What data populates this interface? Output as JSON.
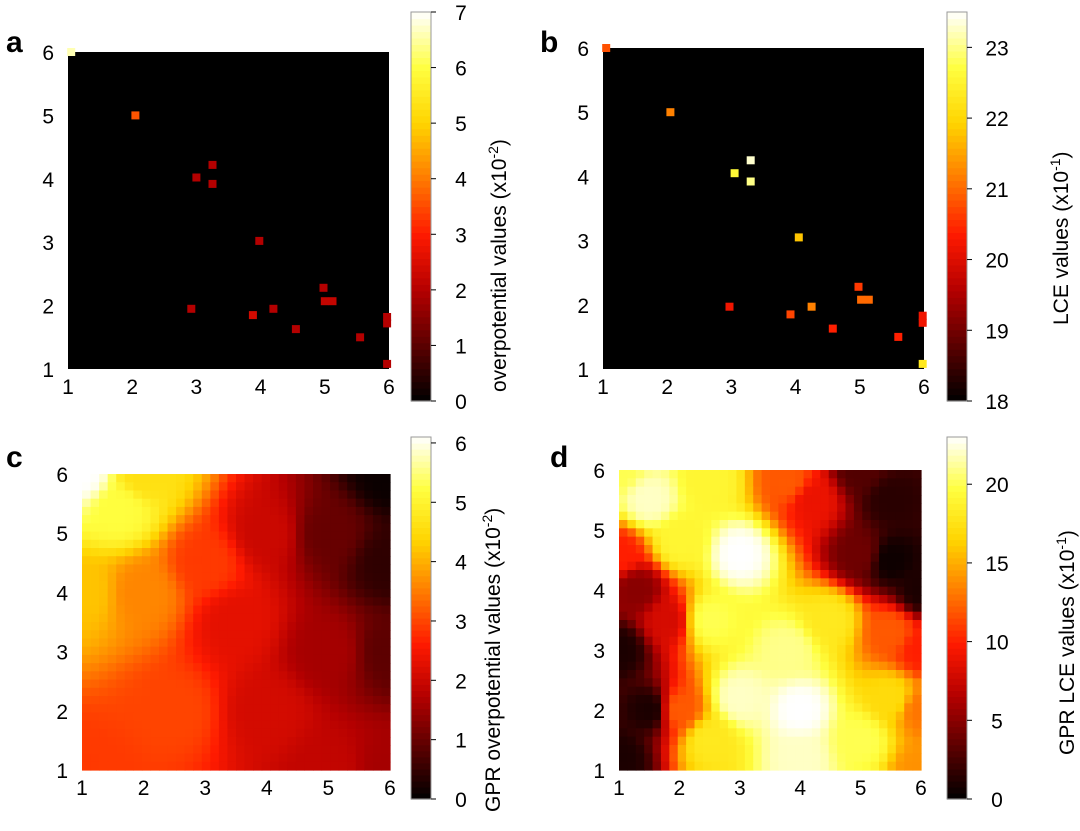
{
  "colormap": {
    "name": "hot",
    "stops": [
      "#000000",
      "#5a0000",
      "#b40000",
      "#ff1a00",
      "#ff7a00",
      "#ffd400",
      "#ffff40",
      "#ffffff"
    ]
  },
  "chart_data": [
    {
      "panel": "a",
      "type": "heatmap",
      "background_color": "#000000",
      "x_ticks": [
        "1",
        "2",
        "3",
        "4",
        "5",
        "6"
      ],
      "y_ticks": [
        "1",
        "2",
        "3",
        "4",
        "5",
        "6"
      ],
      "xlim": [
        1,
        6
      ],
      "ylim": [
        1,
        6
      ],
      "grid": false,
      "colorbar": {
        "label_main": "overpotential values (x10",
        "label_sup": "-2",
        "label_end": ")",
        "ticks": [
          "0",
          "1",
          "2",
          "3",
          "4",
          "5",
          "6",
          "7"
        ],
        "range": [
          0,
          7
        ]
      },
      "points": [
        {
          "x": 1.05,
          "y": 6.0,
          "value": 6.6
        },
        {
          "x": 2.05,
          "y": 5.0,
          "value": 3.6
        },
        {
          "x": 3.25,
          "y": 4.22,
          "value": 2.0
        },
        {
          "x": 3.0,
          "y": 4.02,
          "value": 2.0
        },
        {
          "x": 3.25,
          "y": 3.92,
          "value": 2.0
        },
        {
          "x": 3.98,
          "y": 3.02,
          "value": 2.0
        },
        {
          "x": 2.92,
          "y": 1.95,
          "value": 2.0
        },
        {
          "x": 4.2,
          "y": 1.95,
          "value": 2.0
        },
        {
          "x": 3.88,
          "y": 1.85,
          "value": 2.4
        },
        {
          "x": 4.98,
          "y": 2.28,
          "value": 2.0
        },
        {
          "x": 5.0,
          "y": 2.07,
          "value": 2.2
        },
        {
          "x": 5.12,
          "y": 2.07,
          "value": 2.2
        },
        {
          "x": 4.55,
          "y": 1.63,
          "value": 2.0
        },
        {
          "x": 5.55,
          "y": 1.5,
          "value": 2.0
        },
        {
          "x": 5.97,
          "y": 1.82,
          "value": 2.0
        },
        {
          "x": 5.97,
          "y": 1.72,
          "value": 2.0
        },
        {
          "x": 5.97,
          "y": 1.08,
          "value": 2.0
        }
      ]
    },
    {
      "panel": "b",
      "type": "heatmap",
      "background_color": "#000000",
      "x_ticks": [
        "1",
        "2",
        "3",
        "4",
        "5",
        "6"
      ],
      "y_ticks": [
        "1",
        "2",
        "3",
        "4",
        "5",
        "6"
      ],
      "xlim": [
        1,
        6
      ],
      "ylim": [
        1,
        6
      ],
      "grid": false,
      "colorbar": {
        "label_main": "LCE values (x10",
        "label_sup": "-1",
        "label_end": ")",
        "ticks": [
          "18",
          "19",
          "20",
          "21",
          "22",
          "23"
        ],
        "range": [
          18,
          23.5
        ]
      },
      "points": [
        {
          "x": 1.05,
          "y": 6.0,
          "value": 20.8
        },
        {
          "x": 2.05,
          "y": 5.0,
          "value": 21.2
        },
        {
          "x": 3.3,
          "y": 4.25,
          "value": 23.3
        },
        {
          "x": 3.05,
          "y": 4.05,
          "value": 22.6
        },
        {
          "x": 3.3,
          "y": 3.92,
          "value": 23.0
        },
        {
          "x": 4.05,
          "y": 3.05,
          "value": 21.8
        },
        {
          "x": 2.97,
          "y": 1.97,
          "value": 20.2
        },
        {
          "x": 4.25,
          "y": 1.97,
          "value": 21.2
        },
        {
          "x": 3.92,
          "y": 1.85,
          "value": 20.7
        },
        {
          "x": 4.98,
          "y": 2.28,
          "value": 20.6
        },
        {
          "x": 5.02,
          "y": 2.08,
          "value": 21.0
        },
        {
          "x": 5.14,
          "y": 2.08,
          "value": 21.0
        },
        {
          "x": 4.58,
          "y": 1.63,
          "value": 20.4
        },
        {
          "x": 5.6,
          "y": 1.5,
          "value": 20.4
        },
        {
          "x": 5.98,
          "y": 1.83,
          "value": 20.2
        },
        {
          "x": 5.98,
          "y": 1.72,
          "value": 20.2
        },
        {
          "x": 5.98,
          "y": 1.08,
          "value": 22.3
        }
      ]
    },
    {
      "panel": "c",
      "type": "heatmap",
      "grid": false,
      "x_ticks": [
        "1",
        "2",
        "3",
        "4",
        "5",
        "6"
      ],
      "y_ticks": [
        "1",
        "2",
        "3",
        "4",
        "5",
        "6"
      ],
      "xlim": [
        1,
        6
      ],
      "ylim": [
        1,
        6
      ],
      "resolution": 36,
      "colorbar": {
        "label_main": "GPR overpotential values (x10",
        "label_sup": "-2",
        "label_end": ")",
        "ticks": [
          "0",
          "1",
          "2",
          "3",
          "4",
          "5",
          "6"
        ],
        "range": [
          0,
          6.1
        ]
      },
      "surface_anchors": [
        {
          "x": 1.0,
          "y": 6.0,
          "value": 6.1
        },
        {
          "x": 1.6,
          "y": 5.4,
          "value": 5.2
        },
        {
          "x": 2.0,
          "y": 6.0,
          "value": 4.6
        },
        {
          "x": 1.0,
          "y": 4.0,
          "value": 4.2
        },
        {
          "x": 2.0,
          "y": 4.0,
          "value": 3.6
        },
        {
          "x": 1.0,
          "y": 1.0,
          "value": 2.9
        },
        {
          "x": 2.5,
          "y": 2.0,
          "value": 3.0
        },
        {
          "x": 3.0,
          "y": 4.5,
          "value": 2.9
        },
        {
          "x": 3.5,
          "y": 3.5,
          "value": 2.3
        },
        {
          "x": 4.0,
          "y": 2.0,
          "value": 2.1
        },
        {
          "x": 4.0,
          "y": 5.0,
          "value": 2.0
        },
        {
          "x": 5.0,
          "y": 1.0,
          "value": 1.9
        },
        {
          "x": 5.0,
          "y": 3.0,
          "value": 1.6
        },
        {
          "x": 5.0,
          "y": 5.0,
          "value": 1.0
        },
        {
          "x": 6.0,
          "y": 1.0,
          "value": 1.6
        },
        {
          "x": 6.0,
          "y": 3.0,
          "value": 0.9
        },
        {
          "x": 6.0,
          "y": 4.5,
          "value": 0.45
        },
        {
          "x": 6.0,
          "y": 6.0,
          "value": 0.1
        }
      ]
    },
    {
      "panel": "d",
      "type": "heatmap",
      "grid": false,
      "x_ticks": [
        "1",
        "2",
        "3",
        "4",
        "5",
        "6"
      ],
      "y_ticks": [
        "1",
        "2",
        "3",
        "4",
        "5",
        "6"
      ],
      "xlim": [
        1,
        6
      ],
      "ylim": [
        1,
        6
      ],
      "resolution": 36,
      "colorbar": {
        "label_main": "GPR LCE values (x10",
        "label_sup": "-1",
        "label_end": ")",
        "ticks": [
          "0",
          "5",
          "10",
          "15",
          "20"
        ],
        "range": [
          0,
          23
        ]
      },
      "surface_anchors": [
        {
          "x": 1.0,
          "y": 6.0,
          "value": 20
        },
        {
          "x": 1.5,
          "y": 5.5,
          "value": 22
        },
        {
          "x": 2.5,
          "y": 5.8,
          "value": 19
        },
        {
          "x": 3.0,
          "y": 4.6,
          "value": 23
        },
        {
          "x": 3.8,
          "y": 5.8,
          "value": 12
        },
        {
          "x": 4.2,
          "y": 5.5,
          "value": 9
        },
        {
          "x": 5.0,
          "y": 6.0,
          "value": 3
        },
        {
          "x": 5.5,
          "y": 5.5,
          "value": 1.5
        },
        {
          "x": 5.5,
          "y": 4.5,
          "value": 0.5
        },
        {
          "x": 6.0,
          "y": 4.0,
          "value": 1
        },
        {
          "x": 5.0,
          "y": 4.6,
          "value": 4
        },
        {
          "x": 6.0,
          "y": 3.0,
          "value": 10
        },
        {
          "x": 5.5,
          "y": 3.3,
          "value": 12
        },
        {
          "x": 4.5,
          "y": 3.5,
          "value": 18
        },
        {
          "x": 3.8,
          "y": 3.0,
          "value": 21
        },
        {
          "x": 2.5,
          "y": 3.5,
          "value": 20
        },
        {
          "x": 2.0,
          "y": 4.8,
          "value": 19
        },
        {
          "x": 1.0,
          "y": 4.6,
          "value": 10
        },
        {
          "x": 1.3,
          "y": 4.0,
          "value": 5
        },
        {
          "x": 1.0,
          "y": 3.0,
          "value": 1
        },
        {
          "x": 1.5,
          "y": 2.0,
          "value": 1
        },
        {
          "x": 1.0,
          "y": 1.2,
          "value": 1
        },
        {
          "x": 1.8,
          "y": 3.5,
          "value": 8
        },
        {
          "x": 2.0,
          "y": 2.0,
          "value": 12
        },
        {
          "x": 2.5,
          "y": 1.5,
          "value": 18
        },
        {
          "x": 3.0,
          "y": 2.2,
          "value": 22
        },
        {
          "x": 4.0,
          "y": 1.2,
          "value": 22
        },
        {
          "x": 4.0,
          "y": 2.0,
          "value": 23
        },
        {
          "x": 5.0,
          "y": 1.5,
          "value": 20
        },
        {
          "x": 5.5,
          "y": 2.2,
          "value": 17
        },
        {
          "x": 6.0,
          "y": 1.0,
          "value": 14
        },
        {
          "x": 6.0,
          "y": 2.0,
          "value": 13
        }
      ]
    }
  ]
}
